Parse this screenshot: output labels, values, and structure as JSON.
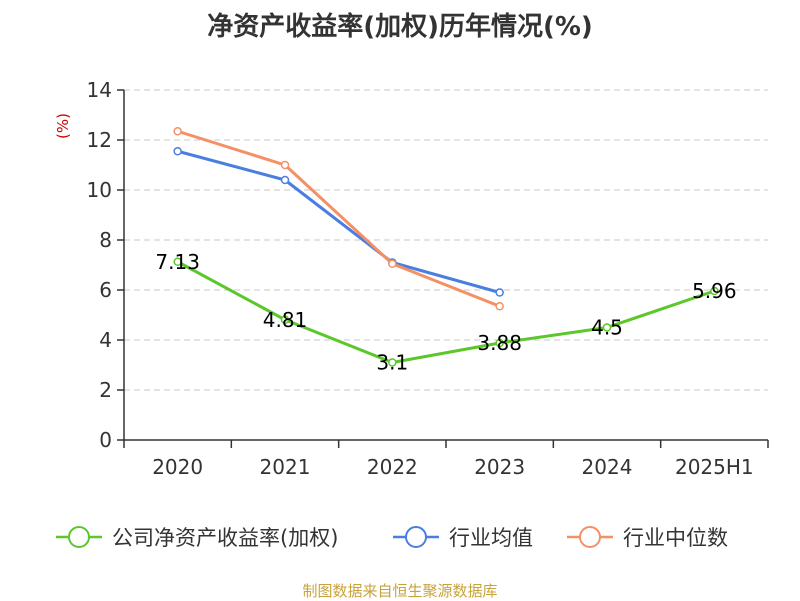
{
  "chart_data": {
    "type": "line",
    "title": "净资产收益率(加权)历年情况(%)",
    "ylabel": "(%)",
    "xlabel": "",
    "categories": [
      "2020",
      "2021",
      "2022",
      "2023",
      "2024",
      "2025H1"
    ],
    "ylim": [
      0,
      14
    ],
    "yticks": [
      0,
      2,
      4,
      6,
      8,
      10,
      12,
      14
    ],
    "grid": true,
    "legend_position": "bottom",
    "series": [
      {
        "name": "公司净资产收益率(加权)",
        "color": "#5cc72a",
        "values": [
          7.13,
          4.81,
          3.1,
          3.88,
          4.5,
          5.96
        ],
        "labels": [
          "7.13",
          "4.81",
          "3.1",
          "3.88",
          "4.5",
          "5.96"
        ]
      },
      {
        "name": "行业均值",
        "color": "#4a7ee0",
        "values": [
          11.55,
          10.4,
          7.1,
          5.9,
          null,
          null
        ]
      },
      {
        "name": "行业中位数",
        "color": "#f59064",
        "values": [
          12.35,
          11.0,
          7.05,
          5.35,
          null,
          null
        ]
      }
    ]
  },
  "footer": {
    "source": "制图数据来自恒生聚源数据库"
  }
}
